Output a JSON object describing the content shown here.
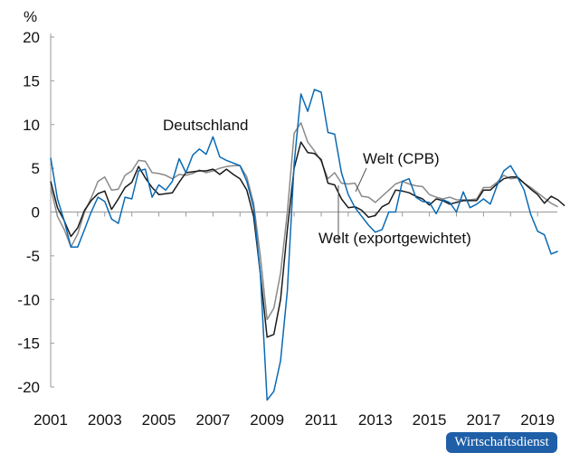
{
  "chart_data": {
    "type": "line",
    "ylabel": "%",
    "ylim": [
      -20,
      20
    ],
    "yticks": [
      20,
      15,
      10,
      5,
      0,
      -5,
      -10,
      -15,
      -20
    ],
    "xlim": [
      2001,
      2019.75
    ],
    "xticks": [
      2001,
      2003,
      2005,
      2007,
      2009,
      2011,
      2013,
      2015,
      2017,
      2019
    ],
    "grid": false,
    "x_start": 2001,
    "x_step": 0.25,
    "series": [
      {
        "name": "Deutschland",
        "color": "#0a6ab4",
        "values": [
          6.2,
          1.5,
          -1.0,
          -4.0,
          -4.0,
          -2.0,
          0,
          1.7,
          1.2,
          -0.8,
          -1.3,
          1.7,
          1.5,
          4.7,
          4.9,
          1.7,
          3.1,
          2.5,
          3.5,
          6.1,
          4.5,
          6.5,
          7.2,
          6.6,
          8.6,
          6.3,
          5.9,
          5.6,
          5.3,
          3.5,
          0.5,
          -7,
          -21.5,
          -20.5,
          -17,
          -9,
          5.5,
          13.5,
          11.5,
          14.0,
          13.7,
          9.1,
          8.9,
          4.5,
          2,
          0.5,
          -0.5,
          -1.5,
          -2.3,
          -2,
          0,
          0,
          3.5,
          3.8,
          1.7,
          1.2,
          1.1,
          -0.2,
          1.4,
          1.1,
          0,
          2.3,
          0.5,
          0.9,
          1.5,
          0.9,
          3.0,
          4.7,
          5.3,
          4.0,
          2.5,
          -0.3,
          -2.2,
          -2.6,
          -4.8,
          -4.5
        ]
      },
      {
        "name": "Welt (exportgewichtet)",
        "color": "#1a1a1a",
        "values": [
          3.5,
          0.5,
          -1.0,
          -2.8,
          -1.8,
          0.2,
          1.3,
          2.1,
          2.4,
          0.3,
          1.5,
          2.8,
          3.4,
          5.2,
          3.9,
          2.8,
          2.0,
          2.1,
          2.2,
          3.4,
          4.5,
          4.6,
          4.7,
          4.7,
          4.9,
          4.3,
          4.9,
          4.3,
          3.8,
          2.5,
          -0.5,
          -7,
          -14.3,
          -14,
          -10,
          -2,
          5,
          8,
          6.8,
          6.7,
          6,
          3.3,
          3.1,
          1.5,
          0.5,
          0.6,
          0.2,
          -0.6,
          -0.4,
          0.6,
          1,
          2.5,
          2.4,
          2.2,
          1.8,
          1.5,
          0.8,
          1.5,
          1.3,
          0.9,
          1.1,
          1.3,
          1.3,
          1.3,
          2.5,
          2.5,
          3.2,
          3.8,
          4.0,
          4.0,
          3.3,
          2.6,
          2.0,
          1.0,
          1.8,
          1.4,
          0.7
        ]
      },
      {
        "name": "Welt (CPB)",
        "color": "#8a8a8a",
        "values": [
          2.8,
          -0.5,
          -2.0,
          -4.0,
          -2.5,
          0,
          1.6,
          3.5,
          4.0,
          2.5,
          2.6,
          4.2,
          4.7,
          5.9,
          5.8,
          4.5,
          4.4,
          4.2,
          3.8,
          4.3,
          4.2,
          4.4,
          4.8,
          4.5,
          4.7,
          5.0,
          5.2,
          5.3,
          5.3,
          4.0,
          1.0,
          -5,
          -12.3,
          -11,
          -7,
          0,
          9.0,
          10.2,
          8,
          7,
          5.8,
          3.8,
          4.5,
          3.3,
          3.2,
          3.3,
          1.8,
          1.7,
          1.1,
          1.8,
          2.5,
          3.2,
          3.5,
          3.2,
          3.0,
          2.9,
          2.0,
          1.7,
          1.5,
          1.7,
          1.4,
          1.4,
          1.4,
          1.5,
          2.8,
          2.8,
          3.4,
          4.2,
          3.8,
          3.9,
          3.3,
          2.8,
          2.2,
          1.6,
          1.0,
          0.6
        ]
      }
    ]
  },
  "labels": {
    "deutschland": "Deutschland",
    "welt_cpb": "Welt (CPB)",
    "welt_export": "Welt (exportgewichtet)"
  },
  "watermark": "Wirtschaftsdienst"
}
